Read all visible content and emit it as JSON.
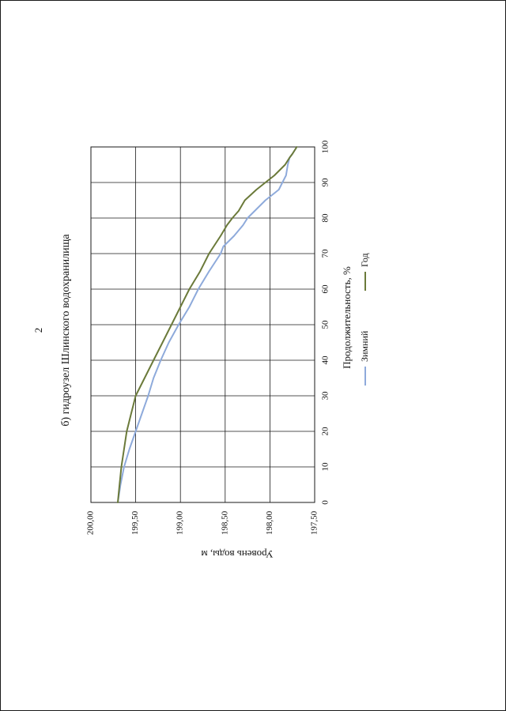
{
  "page_number": "2",
  "colors": {
    "winter": "#8eaadb",
    "year": "#6b7a3a",
    "grid": "#1a1a1a",
    "frame": "#1a1a1a"
  },
  "chart_data": {
    "type": "line",
    "orientation": "rotated 90° clockwise",
    "title": "б) гидроузел Шлинского водохранилища",
    "xlabel": "Продолжительность, %",
    "ylabel": "Уровень воды, м",
    "xlim": [
      0,
      100
    ],
    "ylim": [
      197.5,
      200.0
    ],
    "x_ticks": [
      "0",
      "10",
      "20",
      "30",
      "40",
      "50",
      "60",
      "70",
      "80",
      "90",
      "100"
    ],
    "y_ticks": [
      "200,00",
      "199,50",
      "199,00",
      "198,50",
      "198,00",
      "197,50"
    ],
    "grid": true,
    "legend_position": "bottom",
    "series": [
      {
        "name": "Зимний",
        "color": "#8eaadb",
        "x": [
          0,
          5,
          10,
          15,
          20,
          25,
          30,
          35,
          40,
          45,
          50,
          55,
          60,
          65,
          70,
          72,
          75,
          78,
          80,
          85,
          87,
          88,
          90,
          92,
          95,
          97,
          98,
          100
        ],
        "y": [
          199.7,
          199.67,
          199.63,
          199.57,
          199.5,
          199.43,
          199.36,
          199.3,
          199.22,
          199.13,
          199.02,
          198.9,
          198.8,
          198.68,
          198.55,
          198.52,
          198.4,
          198.3,
          198.25,
          198.05,
          197.95,
          197.9,
          197.86,
          197.82,
          197.8,
          197.78,
          197.75,
          197.7
        ]
      },
      {
        "name": "Год",
        "color": "#6b7a3a",
        "x": [
          0,
          5,
          10,
          15,
          20,
          25,
          30,
          35,
          40,
          45,
          50,
          55,
          60,
          65,
          70,
          75,
          78,
          80,
          82,
          85,
          88,
          90,
          92,
          95,
          97,
          98,
          100
        ],
        "y": [
          199.7,
          199.68,
          199.66,
          199.63,
          199.6,
          199.55,
          199.5,
          199.4,
          199.3,
          199.2,
          199.1,
          199.0,
          198.9,
          198.78,
          198.68,
          198.55,
          198.48,
          198.42,
          198.35,
          198.28,
          198.15,
          198.05,
          197.95,
          197.83,
          197.78,
          197.75,
          197.7
        ]
      }
    ]
  }
}
